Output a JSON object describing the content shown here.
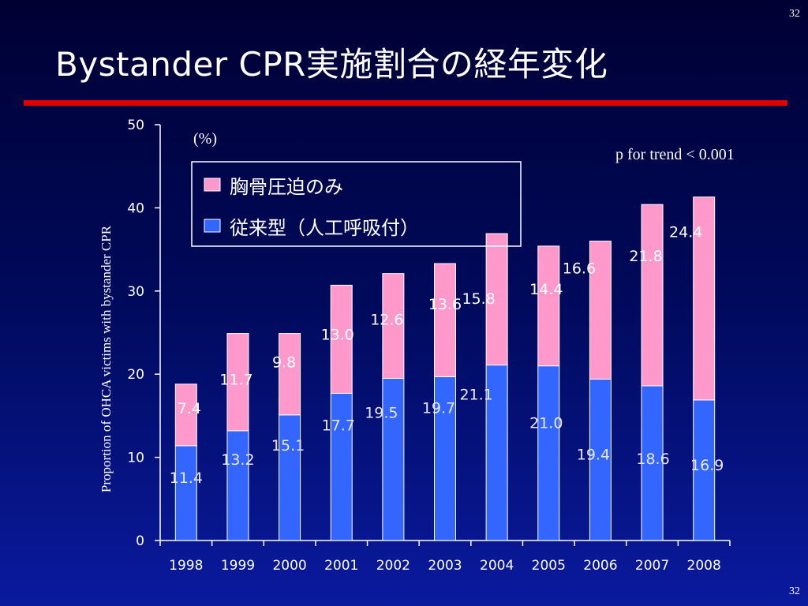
{
  "slide": {
    "page_number": "32",
    "title": "Bystander CPR実施割合の経年変化"
  },
  "colors": {
    "bottom_series": "#3366ff",
    "top_series": "#ff99cc",
    "title_rule": "#e00000"
  },
  "chart_data": {
    "type": "bar",
    "stacked": true,
    "categories": [
      "1998",
      "1999",
      "2000",
      "2001",
      "2002",
      "2003",
      "2004",
      "2005",
      "2006",
      "2007",
      "2008"
    ],
    "series": [
      {
        "name": "従来型（人工呼吸付）",
        "values": [
          11.4,
          13.2,
          15.1,
          17.7,
          19.5,
          19.7,
          21.1,
          21.0,
          19.4,
          18.6,
          16.9
        ],
        "labels": [
          "11.4",
          "13.2",
          "15.1",
          "17.7",
          "19.5",
          "19.7",
          "21.1",
          "21.0",
          "19.4",
          "18.6",
          "16.9"
        ]
      },
      {
        "name": "胸骨圧迫のみ",
        "values": [
          7.4,
          11.7,
          9.8,
          13.0,
          12.6,
          13.6,
          15.8,
          14.4,
          16.6,
          21.8,
          24.4
        ],
        "labels": [
          "7.4",
          "11.7",
          "9.8",
          "13.0",
          "12.6",
          "13.6",
          "15.8",
          "14.4",
          "16.6",
          "21.8",
          "24.4"
        ]
      }
    ],
    "ylim": [
      0,
      50
    ],
    "yticks": [
      "0",
      "10",
      "20",
      "30",
      "40",
      "50"
    ],
    "ylabel": "Proportion of OHCA victims with bystander CPR",
    "unit": "(%)",
    "annotation": "p for trend < 0.001",
    "legend": [
      "胸骨圧迫のみ",
      "従来型（人工呼吸付）"
    ],
    "legend_position": "top-center",
    "grid": false
  }
}
